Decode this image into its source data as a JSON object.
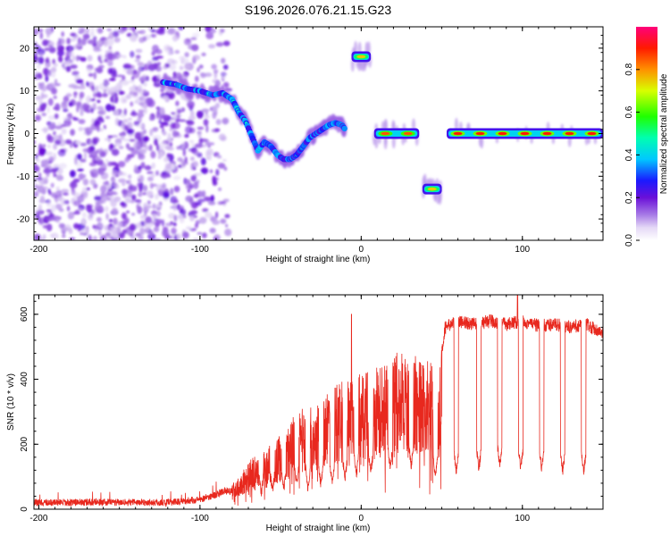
{
  "title": "S196.2026.076.21.15.G23",
  "chart_data": [
    {
      "type": "heatmap",
      "name": "spectrogram",
      "xlabel": "Height of straight line (km)",
      "ylabel": "Frequency (Hz)",
      "xlim": [
        -203,
        150
      ],
      "ylim": [
        -25,
        25
      ],
      "xticks": [
        -200,
        -100,
        0,
        100
      ],
      "yticks": [
        -20,
        -10,
        0,
        10,
        20
      ],
      "colorbar": {
        "label": "Normalized spectral amplitude",
        "range": [
          0,
          1
        ],
        "ticks": [
          0.0,
          0.2,
          0.4,
          0.6,
          0.8
        ]
      },
      "noise_region": {
        "x": [
          -203,
          -82
        ],
        "y": [
          -25,
          25
        ],
        "amplitude": 0.12
      },
      "traces": [
        {
          "name": "descending-track",
          "x": [
            -123,
            -115,
            -108,
            -100,
            -92,
            -86,
            -80,
            -76,
            -72,
            -68,
            -64,
            -60,
            -56,
            -52,
            -48,
            -44,
            -40,
            -36,
            -32,
            -28,
            -24,
            -20,
            -16,
            -12,
            -10
          ],
          "y": [
            12,
            11.5,
            10.5,
            10,
            9,
            9.5,
            8,
            5,
            3,
            -0.5,
            -4,
            -2,
            -3,
            -5,
            -6,
            -6,
            -5,
            -3,
            -1,
            0,
            1,
            2,
            2.5,
            2,
            1
          ],
          "amplitude": 0.22
        },
        {
          "name": "tone-18hz",
          "x": [
            -6,
            6
          ],
          "y": [
            18,
            18
          ],
          "amplitude": 0.75
        },
        {
          "name": "tone-0hz-a",
          "x": [
            8,
            36
          ],
          "y": [
            0,
            0
          ],
          "amplitude": 0.85
        },
        {
          "name": "tone-minus13hz",
          "x": [
            38,
            50
          ],
          "y": [
            -13,
            -13
          ],
          "amplitude": 0.75
        },
        {
          "name": "tone-0hz-b",
          "x": [
            53,
            150
          ],
          "y": [
            0,
            0
          ],
          "amplitude": 0.9
        }
      ]
    },
    {
      "type": "line",
      "name": "snr",
      "xlabel": "Height of straight line (km)",
      "ylabel": "SNR (10 * v/v)",
      "xlim": [
        -203,
        150
      ],
      "ylim": [
        0,
        660
      ],
      "xticks": [
        -200,
        -100,
        0,
        100
      ],
      "yticks": [
        0,
        200,
        400,
        600
      ],
      "color": "#e8281e",
      "series": [
        {
          "name": "baseline",
          "x": [
            -203,
            -150,
            -120,
            -100,
            -90,
            -85
          ],
          "y": [
            20,
            22,
            20,
            30,
            45,
            55
          ]
        },
        {
          "name": "envelope",
          "x": [
            -80,
            -70,
            -60,
            -50,
            -40,
            -30,
            -20,
            -10,
            0,
            10,
            20,
            30,
            40,
            45,
            48,
            50,
            52,
            60,
            70,
            80,
            90,
            100,
            110,
            120,
            130,
            140,
            150
          ],
          "y": [
            80,
            150,
            180,
            230,
            300,
            330,
            370,
            400,
            420,
            440,
            480,
            490,
            470,
            440,
            410,
            500,
            580,
            600,
            590,
            600,
            590,
            600,
            585,
            590,
            580,
            590,
            560
          ]
        },
        {
          "name": "dips",
          "x": [
            -62,
            -55,
            -48,
            -40,
            -33,
            -25,
            -18,
            -10,
            -3,
            6,
            18,
            31,
            46,
            59,
            73,
            86,
            99,
            112,
            125,
            138
          ],
          "y": [
            30,
            40,
            45,
            60,
            50,
            60,
            70,
            80,
            90,
            100,
            110,
            120,
            90,
            100,
            110,
            120,
            110,
            110,
            100,
            100
          ]
        },
        {
          "name": "spikes",
          "x": [
            -6,
            97
          ],
          "y": [
            600,
            660
          ]
        }
      ]
    }
  ]
}
